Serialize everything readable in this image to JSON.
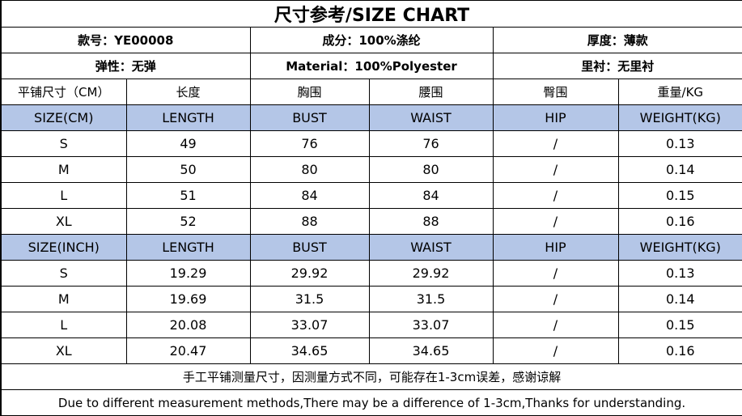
{
  "title": "尺寸参考/SIZE CHART",
  "info": {
    "style_no": "款号：YE00008",
    "composition": "成分：100%涤纶",
    "thickness": "厚度：薄款",
    "elasticity": "弹性：无弹",
    "material": "Material：100%Polyester",
    "lining": "里衬：无里衬"
  },
  "cn_headers": [
    "平铺尺寸（CM）",
    "长度",
    "胸围",
    "腰围",
    "臀围",
    "重量/KG"
  ],
  "cm": {
    "headers": [
      "SIZE(CM)",
      "LENGTH",
      "BUST",
      "WAIST",
      "HIP",
      "WEIGHT(KG)"
    ],
    "rows": [
      [
        "S",
        "49",
        "76",
        "76",
        "/",
        "0.13"
      ],
      [
        "M",
        "50",
        "80",
        "80",
        "/",
        "0.14"
      ],
      [
        "L",
        "51",
        "84",
        "84",
        "/",
        "0.15"
      ],
      [
        "XL",
        "52",
        "88",
        "88",
        "/",
        "0.16"
      ]
    ]
  },
  "inch": {
    "headers": [
      "SIZE(INCH)",
      "LENGTH",
      "BUST",
      "WAIST",
      "HIP",
      "WEIGHT(KG)"
    ],
    "rows": [
      [
        "S",
        "19.29",
        "29.92",
        "29.92",
        "/",
        "0.13"
      ],
      [
        "M",
        "19.69",
        "31.5",
        "31.5",
        "/",
        "0.14"
      ],
      [
        "L",
        "20.08",
        "33.07",
        "33.07",
        "/",
        "0.15"
      ],
      [
        "XL",
        "20.47",
        "34.65",
        "34.65",
        "/",
        "0.16"
      ]
    ]
  },
  "notes": {
    "cn": "手工平铺测量尺寸，因测量方式不同，可能存在1-3cm误差，感谢谅解",
    "en": "Due to different measurement methods,There may be a difference of 1-3cm,Thanks for understanding."
  },
  "colors": {
    "header_fill": "#b4c6e7",
    "border": "#000000"
  }
}
